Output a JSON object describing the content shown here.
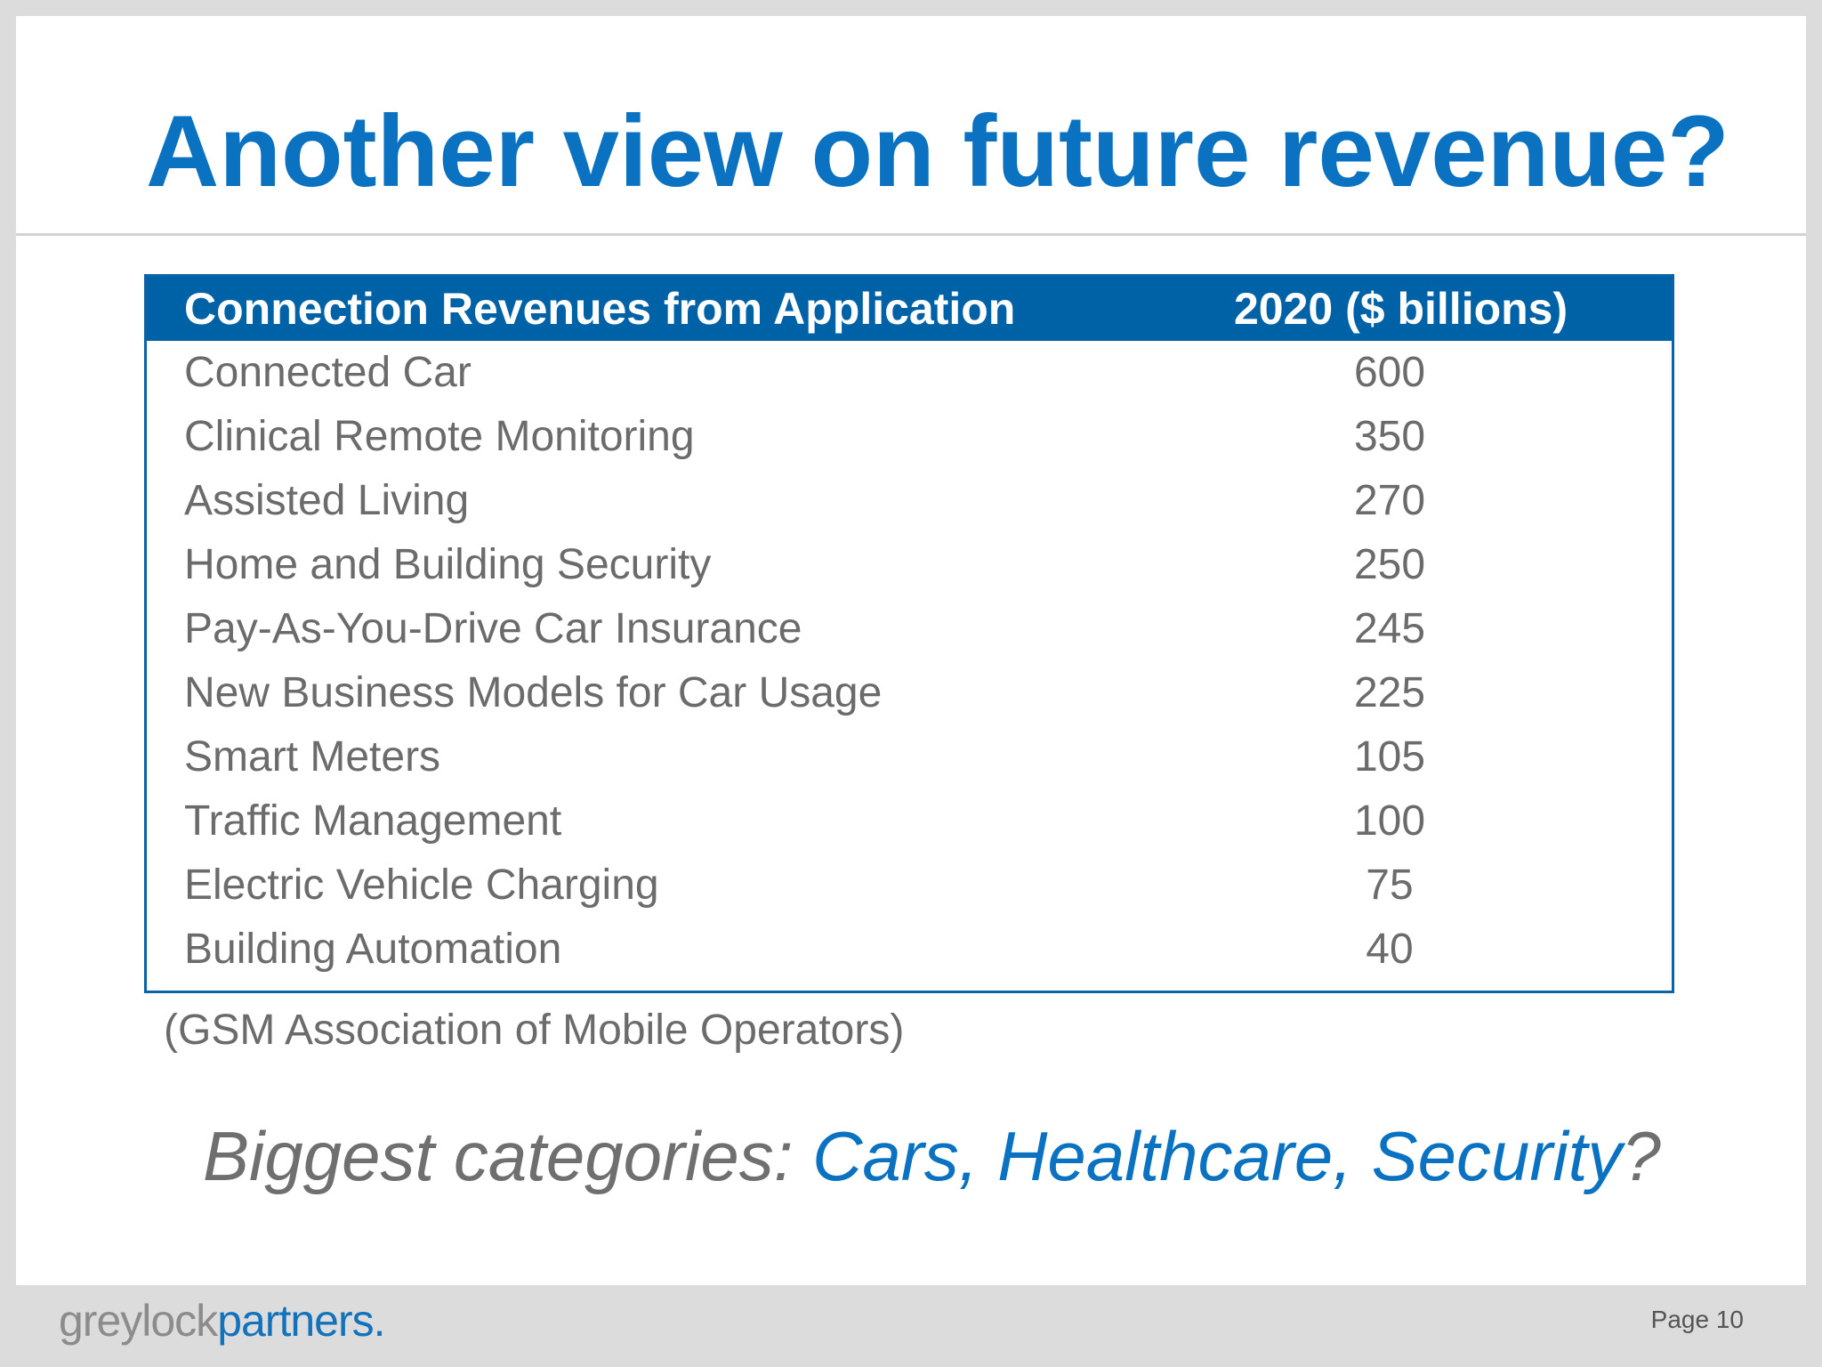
{
  "slide": {
    "title": "Another view on future revenue?"
  },
  "table": {
    "headers": {
      "application": "Connection Revenues from Application",
      "value": "2020 ($ billions)"
    },
    "rows": [
      {
        "application": "Connected Car",
        "value": "600"
      },
      {
        "application": "Clinical Remote Monitoring",
        "value": "350"
      },
      {
        "application": "Assisted Living",
        "value": "270"
      },
      {
        "application": "Home and Building Security",
        "value": "250"
      },
      {
        "application": "Pay-As-You-Drive Car Insurance",
        "value": "245"
      },
      {
        "application": "New Business Models for Car Usage",
        "value": "225"
      },
      {
        "application": "Smart Meters",
        "value": "105"
      },
      {
        "application": "Traffic Management",
        "value": "100"
      },
      {
        "application": "Electric Vehicle Charging",
        "value": "75"
      },
      {
        "application": "Building Automation",
        "value": "40"
      }
    ],
    "source": "(GSM Association of Mobile Operators)"
  },
  "callout": {
    "lead": "Biggest categories: ",
    "highlight": "Cars, Healthcare, Security",
    "tail": "?"
  },
  "footer": {
    "logo_part1": "greylock",
    "logo_part2": "partners.",
    "page": "Page 10"
  },
  "colors": {
    "brand_blue": "#0a72c0",
    "table_header_blue": "#0062a6",
    "body_gray": "#6b6b6b"
  }
}
